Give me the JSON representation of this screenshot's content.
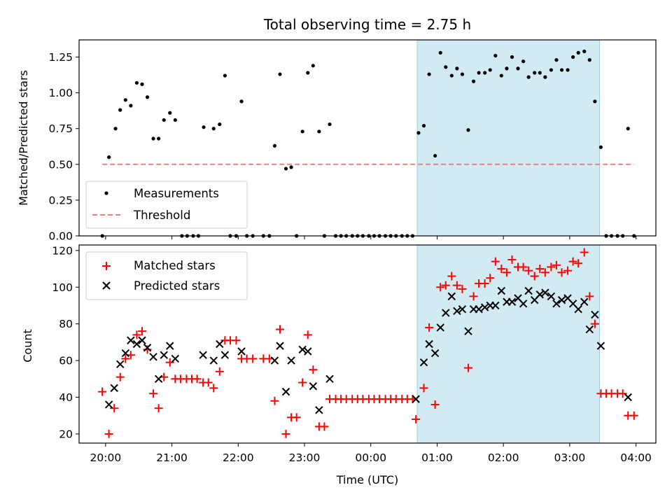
{
  "chart_data": [
    {
      "type": "scatter",
      "title": "Total observing time = 2.75 h",
      "xlabel": "",
      "ylabel": "Matched/Predicted stars",
      "x_unit": "hours since 20:00 UTC",
      "xlim": [
        -0.4,
        8.3
      ],
      "ylim": [
        0,
        1.37
      ],
      "yticks": [
        0.0,
        0.25,
        0.5,
        0.75,
        1.0,
        1.25
      ],
      "ytick_labels": [
        "0.00",
        "0.25",
        "0.50",
        "0.75",
        "1.00",
        "1.25"
      ],
      "shaded_span": [
        4.7,
        7.45
      ],
      "shade_color": "#add8e6",
      "legend": {
        "position": "lower-left",
        "entries": [
          "Measurements",
          "Threshold"
        ]
      },
      "series": [
        {
          "name": "Measurements",
          "marker": "dot",
          "color": "#000000",
          "points": [
            [
              -0.05,
              0.0
            ],
            [
              0.05,
              0.55
            ],
            [
              0.15,
              0.75
            ],
            [
              0.22,
              0.88
            ],
            [
              0.3,
              0.95
            ],
            [
              0.38,
              0.91
            ],
            [
              0.47,
              1.07
            ],
            [
              0.55,
              1.06
            ],
            [
              0.63,
              0.97
            ],
            [
              0.72,
              0.68
            ],
            [
              0.8,
              0.68
            ],
            [
              0.88,
              0.81
            ],
            [
              0.97,
              0.86
            ],
            [
              1.05,
              0.81
            ],
            [
              1.15,
              0.0
            ],
            [
              1.23,
              0.0
            ],
            [
              1.32,
              0.0
            ],
            [
              1.4,
              0.0
            ],
            [
              1.48,
              0.76
            ],
            [
              1.63,
              0.75
            ],
            [
              1.72,
              0.78
            ],
            [
              1.8,
              1.12
            ],
            [
              1.88,
              0.0
            ],
            [
              1.97,
              0.0
            ],
            [
              2.05,
              0.94
            ],
            [
              2.13,
              0.0
            ],
            [
              2.22,
              0.0
            ],
            [
              2.38,
              0.0
            ],
            [
              2.47,
              0.0
            ],
            [
              2.55,
              0.63
            ],
            [
              2.63,
              1.13
            ],
            [
              2.72,
              0.47
            ],
            [
              2.8,
              0.48
            ],
            [
              2.88,
              0.0
            ],
            [
              2.97,
              0.73
            ],
            [
              3.05,
              1.14
            ],
            [
              3.13,
              1.19
            ],
            [
              3.22,
              0.73
            ],
            [
              3.3,
              0.0
            ],
            [
              3.38,
              0.78
            ],
            [
              3.47,
              0.0
            ],
            [
              3.55,
              0.0
            ],
            [
              3.63,
              0.0
            ],
            [
              3.72,
              0.0
            ],
            [
              3.8,
              0.0
            ],
            [
              3.88,
              0.0
            ],
            [
              3.97,
              0.0
            ],
            [
              4.05,
              0.0
            ],
            [
              4.13,
              0.0
            ],
            [
              4.22,
              0.0
            ],
            [
              4.3,
              0.0
            ],
            [
              4.38,
              0.0
            ],
            [
              4.47,
              0.0
            ],
            [
              4.55,
              0.0
            ],
            [
              4.63,
              0.0
            ],
            [
              4.72,
              0.72
            ],
            [
              4.8,
              0.77
            ],
            [
              4.88,
              1.13
            ],
            [
              4.97,
              0.56
            ],
            [
              5.05,
              1.28
            ],
            [
              5.13,
              1.18
            ],
            [
              5.22,
              1.12
            ],
            [
              5.3,
              1.17
            ],
            [
              5.38,
              1.13
            ],
            [
              5.47,
              0.74
            ],
            [
              5.55,
              1.08
            ],
            [
              5.63,
              1.14
            ],
            [
              5.72,
              1.14
            ],
            [
              5.8,
              1.16
            ],
            [
              5.88,
              1.26
            ],
            [
              5.97,
              1.12
            ],
            [
              6.05,
              1.17
            ],
            [
              6.13,
              1.25
            ],
            [
              6.22,
              1.17
            ],
            [
              6.3,
              1.22
            ],
            [
              6.38,
              1.11
            ],
            [
              6.47,
              1.14
            ],
            [
              6.55,
              1.14
            ],
            [
              6.63,
              1.11
            ],
            [
              6.72,
              1.16
            ],
            [
              6.8,
              1.23
            ],
            [
              6.88,
              1.16
            ],
            [
              6.97,
              1.16
            ],
            [
              7.05,
              1.25
            ],
            [
              7.13,
              1.28
            ],
            [
              7.22,
              1.29
            ],
            [
              7.3,
              1.23
            ],
            [
              7.38,
              0.94
            ],
            [
              7.47,
              0.62
            ],
            [
              7.55,
              0.0
            ],
            [
              7.63,
              0.0
            ],
            [
              7.72,
              0.0
            ],
            [
              7.8,
              0.0
            ],
            [
              7.88,
              0.75
            ],
            [
              7.97,
              0.0
            ]
          ]
        },
        {
          "name": "Threshold",
          "style": "dashed",
          "color": "#f08080",
          "points": [
            [
              -0.05,
              0.5
            ],
            [
              7.97,
              0.5
            ]
          ]
        }
      ]
    },
    {
      "type": "scatter",
      "title": "",
      "xlabel": "Time (UTC)",
      "ylabel": "Count",
      "x_unit": "hours since 20:00 UTC",
      "xlim": [
        -0.4,
        8.3
      ],
      "ylim": [
        15,
        123
      ],
      "xticks": [
        0,
        1,
        2,
        3,
        4,
        5,
        6,
        7,
        8
      ],
      "xtick_labels": [
        "20:00",
        "21:00",
        "22:00",
        "23:00",
        "00:00",
        "01:00",
        "02:00",
        "03:00",
        "04:00"
      ],
      "yticks": [
        20,
        40,
        60,
        80,
        100,
        120
      ],
      "ytick_labels": [
        "20",
        "40",
        "60",
        "80",
        "100",
        "120"
      ],
      "shaded_span": [
        4.7,
        7.45
      ],
      "shade_color": "#add8e6",
      "legend": {
        "position": "upper-left",
        "entries": [
          "Matched stars",
          "Predicted stars"
        ]
      },
      "series": [
        {
          "name": "Matched stars",
          "marker": "plus",
          "color": "#ff0000",
          "points": [
            [
              -0.05,
              43
            ],
            [
              0.05,
              20
            ],
            [
              0.13,
              34
            ],
            [
              0.22,
              51
            ],
            [
              0.3,
              61
            ],
            [
              0.38,
              63
            ],
            [
              0.47,
              74
            ],
            [
              0.55,
              76
            ],
            [
              0.63,
              66
            ],
            [
              0.72,
              42
            ],
            [
              0.8,
              34
            ],
            [
              0.88,
              51
            ],
            [
              0.97,
              59
            ],
            [
              1.05,
              50
            ],
            [
              1.13,
              50
            ],
            [
              1.22,
              50
            ],
            [
              1.3,
              50
            ],
            [
              1.38,
              50
            ],
            [
              1.47,
              48
            ],
            [
              1.55,
              48
            ],
            [
              1.63,
              45
            ],
            [
              1.72,
              54
            ],
            [
              1.8,
              71
            ],
            [
              1.88,
              71
            ],
            [
              1.97,
              71
            ],
            [
              2.05,
              61
            ],
            [
              2.13,
              61
            ],
            [
              2.22,
              61
            ],
            [
              2.38,
              61
            ],
            [
              2.47,
              61
            ],
            [
              2.55,
              38
            ],
            [
              2.63,
              77
            ],
            [
              2.72,
              20
            ],
            [
              2.8,
              29
            ],
            [
              2.88,
              29
            ],
            [
              2.97,
              48
            ],
            [
              3.05,
              74
            ],
            [
              3.13,
              55
            ],
            [
              3.22,
              24
            ],
            [
              3.3,
              24
            ],
            [
              3.38,
              39
            ],
            [
              3.47,
              39
            ],
            [
              3.55,
              39
            ],
            [
              3.63,
              39
            ],
            [
              3.72,
              39
            ],
            [
              3.8,
              39
            ],
            [
              3.88,
              39
            ],
            [
              3.97,
              39
            ],
            [
              4.05,
              39
            ],
            [
              4.13,
              39
            ],
            [
              4.22,
              39
            ],
            [
              4.3,
              39
            ],
            [
              4.38,
              39
            ],
            [
              4.47,
              39
            ],
            [
              4.55,
              39
            ],
            [
              4.63,
              39
            ],
            [
              4.68,
              28
            ],
            [
              4.8,
              45
            ],
            [
              4.88,
              78
            ],
            [
              4.97,
              36
            ],
            [
              5.05,
              100
            ],
            [
              5.13,
              101
            ],
            [
              5.22,
              106
            ],
            [
              5.3,
              101
            ],
            [
              5.38,
              99
            ],
            [
              5.47,
              56
            ],
            [
              5.55,
              95
            ],
            [
              5.63,
              102
            ],
            [
              5.72,
              102
            ],
            [
              5.8,
              105
            ],
            [
              5.88,
              114
            ],
            [
              5.97,
              110
            ],
            [
              6.05,
              108
            ],
            [
              6.13,
              115
            ],
            [
              6.22,
              111
            ],
            [
              6.3,
              111
            ],
            [
              6.38,
              109
            ],
            [
              6.47,
              106
            ],
            [
              6.55,
              110
            ],
            [
              6.63,
              108
            ],
            [
              6.72,
              111
            ],
            [
              6.8,
              112
            ],
            [
              6.88,
              108
            ],
            [
              6.97,
              109
            ],
            [
              7.05,
              114
            ],
            [
              7.13,
              113
            ],
            [
              7.22,
              119
            ],
            [
              7.3,
              95
            ],
            [
              7.38,
              80
            ],
            [
              7.47,
              42
            ],
            [
              7.55,
              42
            ],
            [
              7.63,
              42
            ],
            [
              7.72,
              42
            ],
            [
              7.8,
              42
            ],
            [
              7.88,
              30
            ],
            [
              7.97,
              30
            ]
          ]
        },
        {
          "name": "Predicted stars",
          "marker": "x",
          "color": "#000000",
          "points": [
            [
              0.05,
              36
            ],
            [
              0.13,
              45
            ],
            [
              0.22,
              58
            ],
            [
              0.3,
              64
            ],
            [
              0.38,
              71
            ],
            [
              0.47,
              69
            ],
            [
              0.55,
              71
            ],
            [
              0.63,
              67
            ],
            [
              0.72,
              62
            ],
            [
              0.8,
              50
            ],
            [
              0.88,
              63
            ],
            [
              0.97,
              68
            ],
            [
              1.05,
              61
            ],
            [
              1.47,
              63
            ],
            [
              1.63,
              60
            ],
            [
              1.72,
              69
            ],
            [
              1.8,
              63
            ],
            [
              2.05,
              65
            ],
            [
              2.55,
              60
            ],
            [
              2.63,
              68
            ],
            [
              2.72,
              43
            ],
            [
              2.8,
              60
            ],
            [
              2.97,
              66
            ],
            [
              3.05,
              65
            ],
            [
              3.13,
              46
            ],
            [
              3.22,
              33
            ],
            [
              3.38,
              50
            ],
            [
              4.68,
              39
            ],
            [
              4.8,
              59
            ],
            [
              4.88,
              69
            ],
            [
              4.97,
              64
            ],
            [
              5.05,
              78
            ],
            [
              5.13,
              86
            ],
            [
              5.22,
              95
            ],
            [
              5.3,
              87
            ],
            [
              5.38,
              88
            ],
            [
              5.47,
              76
            ],
            [
              5.55,
              88
            ],
            [
              5.63,
              88
            ],
            [
              5.72,
              89
            ],
            [
              5.8,
              90
            ],
            [
              5.88,
              90
            ],
            [
              5.97,
              98
            ],
            [
              6.05,
              92
            ],
            [
              6.13,
              92
            ],
            [
              6.22,
              94
            ],
            [
              6.3,
              91
            ],
            [
              6.38,
              98
            ],
            [
              6.47,
              93
            ],
            [
              6.55,
              96
            ],
            [
              6.63,
              97
            ],
            [
              6.72,
              95
            ],
            [
              6.8,
              91
            ],
            [
              6.88,
              93
            ],
            [
              6.97,
              94
            ],
            [
              7.05,
              91
            ],
            [
              7.13,
              88
            ],
            [
              7.22,
              92
            ],
            [
              7.3,
              77
            ],
            [
              7.38,
              85
            ],
            [
              7.47,
              68
            ],
            [
              7.88,
              40
            ]
          ]
        }
      ]
    }
  ]
}
